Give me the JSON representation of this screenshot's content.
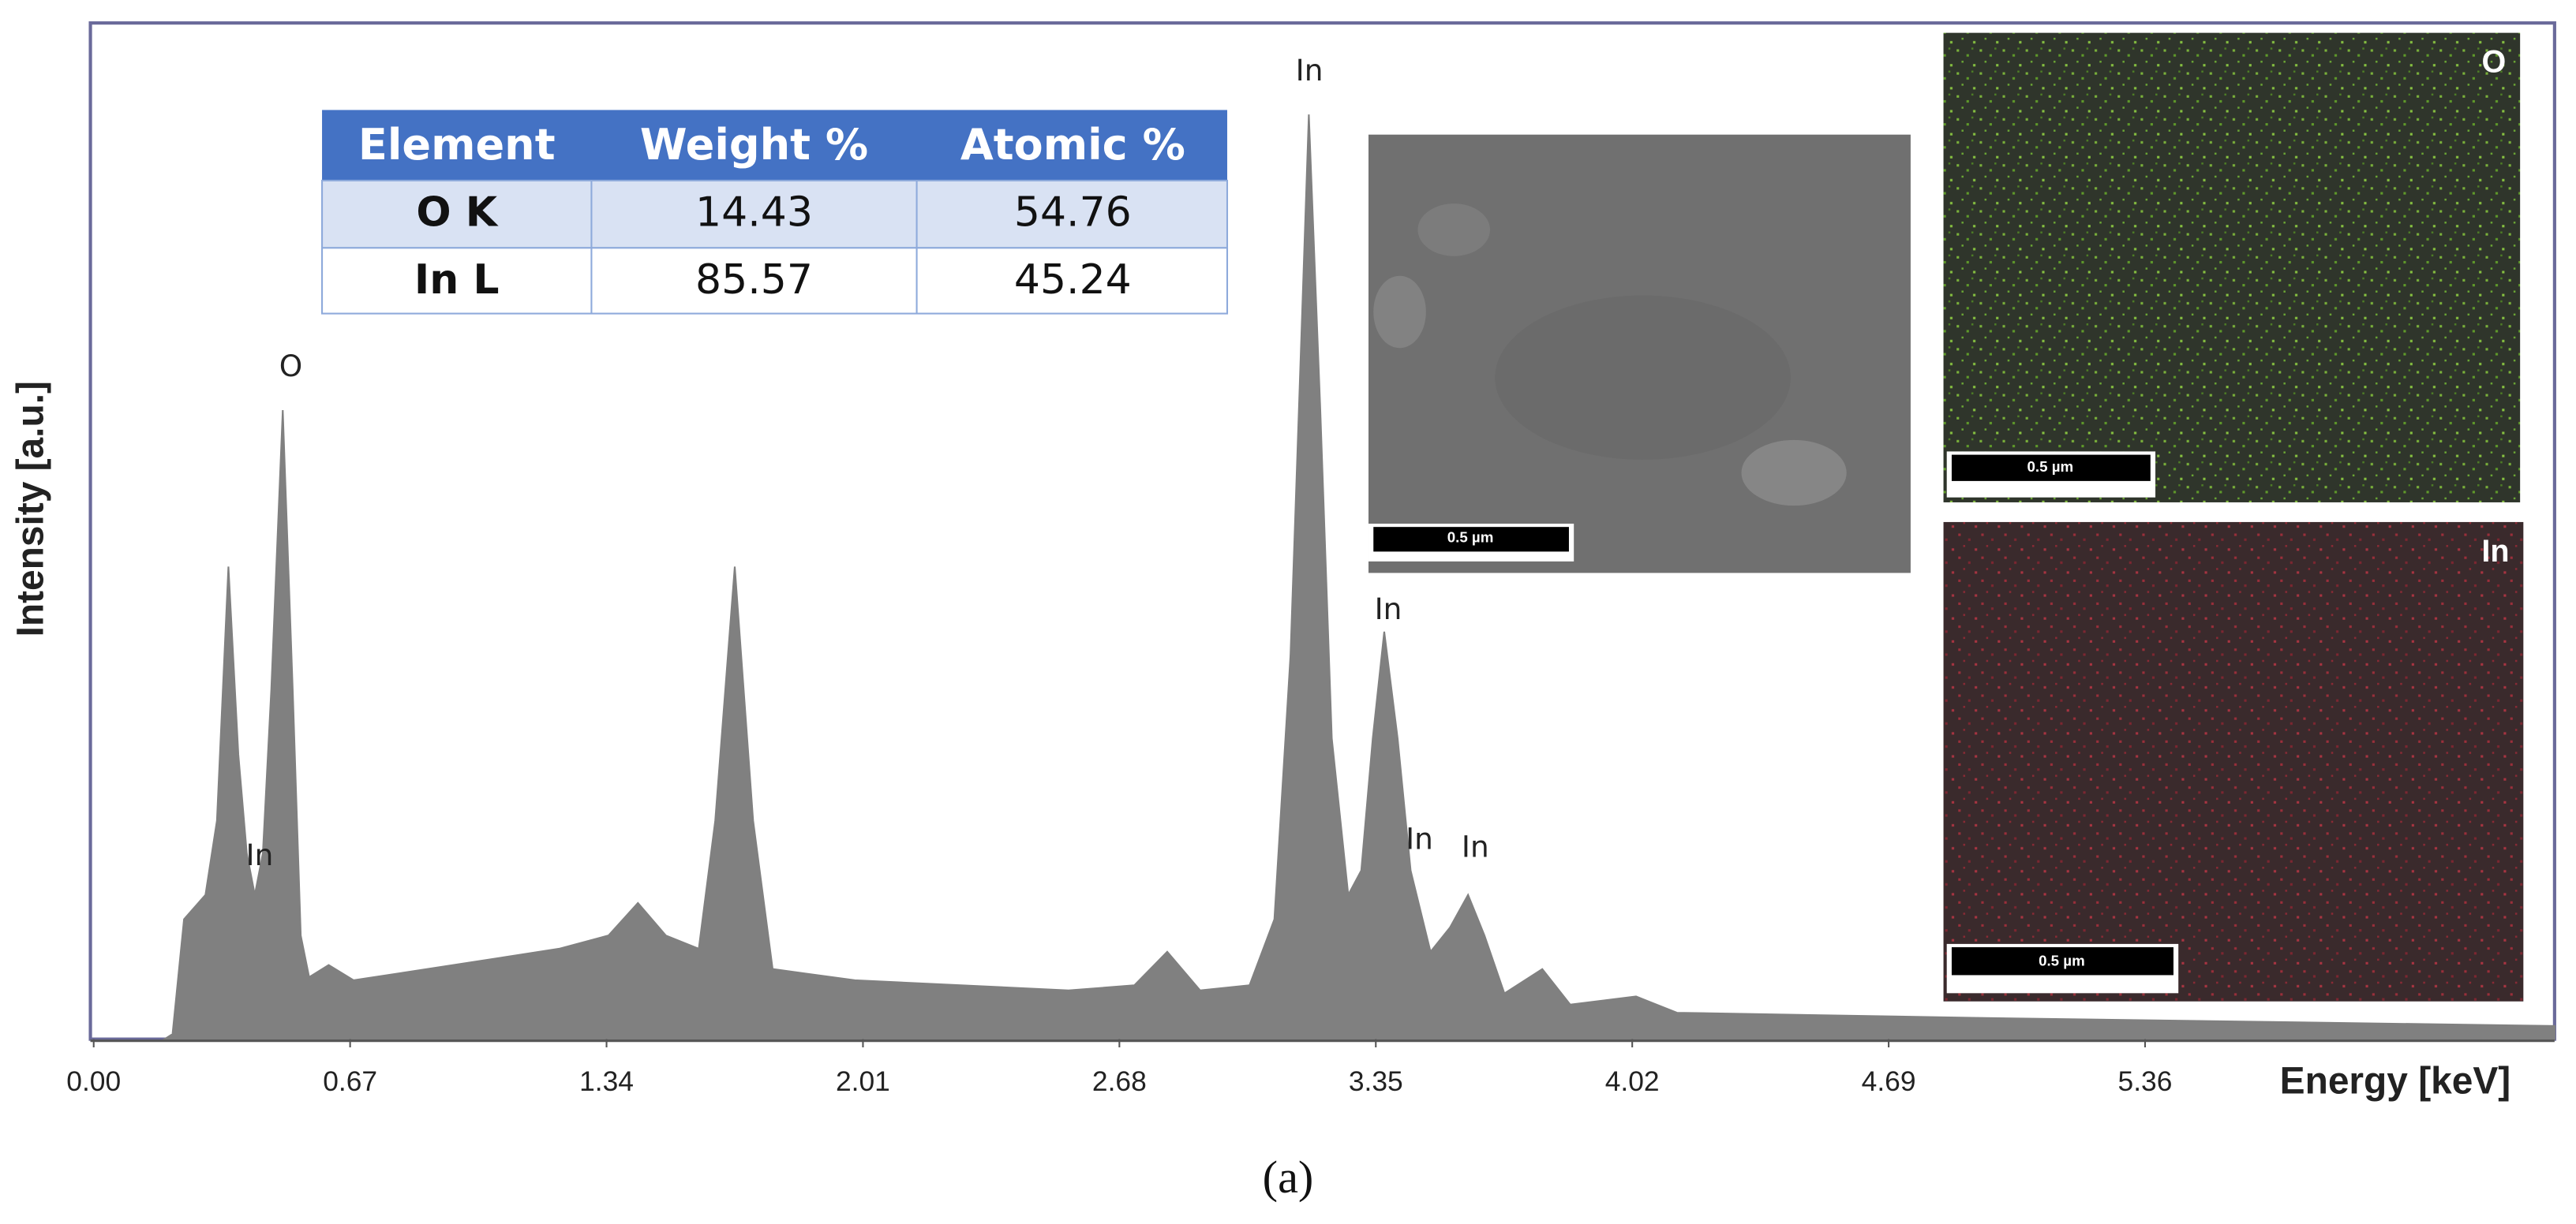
{
  "chart_data": {
    "type": "area",
    "xlabel": "Energy [keV]",
    "ylabel": "Intensity [a.u.]",
    "x": [
      0.185,
      0.206,
      0.236,
      0.292,
      0.322,
      0.352,
      0.378,
      0.4,
      0.421,
      0.442,
      0.464,
      0.494,
      0.52,
      0.541,
      0.563,
      0.614,
      0.679,
      0.872,
      1.216,
      1.345,
      1.422,
      1.495,
      1.581,
      1.624,
      1.675,
      1.723,
      1.774,
      1.989,
      2.547,
      2.719,
      2.805,
      2.891,
      3.02,
      3.085,
      3.127,
      3.149,
      3.175,
      3.205,
      3.235,
      3.278,
      3.312,
      3.342,
      3.372,
      3.407,
      3.441,
      3.493,
      3.544,
      3.591,
      3.634,
      3.686,
      3.785,
      3.858,
      4.03,
      4.137,
      4.91,
      6.43
    ],
    "values": [
      0,
      0.5,
      11.8,
      14.2,
      21.5,
      46.5,
      28,
      18.3,
      14.2,
      18.3,
      34.4,
      61.9,
      34.4,
      10.2,
      6.1,
      7.3,
      5.8,
      6.9,
      8.9,
      10.2,
      13.4,
      10.2,
      8.9,
      21.5,
      46.5,
      21.5,
      6.9,
      5.8,
      4.8,
      5.3,
      8.6,
      4.8,
      5.3,
      11.8,
      37.7,
      61.9,
      91,
      61.9,
      29.6,
      14.2,
      16.6,
      29.6,
      40.1,
      29.6,
      16.6,
      8.6,
      11,
      14.2,
      10.2,
      4.5,
      6.9,
      3.4,
      4.2,
      2.6,
      2.1,
      1.3
    ],
    "color": "#808080",
    "xlim": [
      0,
      6.43
    ],
    "ylim": [
      0,
      100
    ],
    "xticks": [
      {
        "value": 0,
        "label": "0.00"
      },
      0.67,
      1.34,
      2.01,
      2.68,
      3.35,
      4.02,
      4.69,
      5.36
    ],
    "annotations": [
      "O",
      "In",
      "In",
      "In",
      "In",
      "In"
    ]
  },
  "table": {
    "header": [
      "Element",
      "Weight %",
      "Atomic %"
    ],
    "rows": [
      [
        "O K",
        "14.43",
        "54.76"
      ],
      [
        "In L",
        "85.57",
        "45.24"
      ]
    ]
  },
  "insets": {
    "sem_scale": "0.5 µm",
    "o_map": {
      "label": "O",
      "scale": "0.5 µm"
    },
    "in_map": {
      "label": "In",
      "scale": "0.5 µm"
    }
  },
  "caption": "(a)"
}
